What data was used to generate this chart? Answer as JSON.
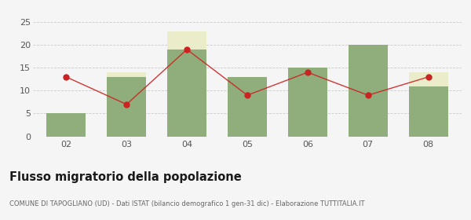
{
  "years": [
    "02",
    "03",
    "04",
    "05",
    "06",
    "07",
    "08"
  ],
  "iscritti_altri_comuni": [
    5,
    13,
    19,
    13,
    15,
    20,
    11
  ],
  "iscritti_estero": [
    0,
    1,
    4,
    0,
    0,
    0,
    3
  ],
  "iscritti_altri": [
    0,
    0,
    0,
    0,
    0,
    0,
    0
  ],
  "cancellati": [
    13,
    7,
    19,
    9,
    14,
    9,
    13
  ],
  "color_altri_comuni": "#8fae7b",
  "color_estero": "#eaecca",
  "color_altri": "#3a6b35",
  "color_cancellati": "#cc2222",
  "ylim": [
    0,
    25
  ],
  "yticks": [
    0,
    5,
    10,
    15,
    20,
    25
  ],
  "title": "Flusso migratorio della popolazione",
  "subtitle": "COMUNE DI TAPOGLIANO (UD) - Dati ISTAT (bilancio demografico 1 gen-31 dic) - Elaborazione TUTTITALIA.IT",
  "background_color": "#f5f5f5"
}
